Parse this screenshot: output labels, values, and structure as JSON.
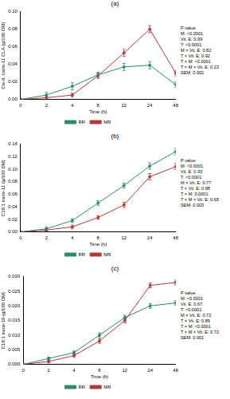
{
  "chart_data": [
    {
      "type": "line",
      "title": "(a)",
      "x_label": "Time (h)",
      "y_label": "Cis-9, trans-11 CLA (g/100 DM)",
      "categories": [
        "0",
        "2",
        "4",
        "8",
        "12",
        "24",
        "48"
      ],
      "series": [
        {
          "name": "RR",
          "color": "#2e8b6e",
          "marker": "circle",
          "values": [
            0.0,
            0.005,
            0.015,
            0.028,
            0.037,
            0.039,
            0.017
          ],
          "errors": [
            0.001,
            0.003,
            0.004,
            0.003,
            0.004,
            0.004,
            0.003
          ]
        },
        {
          "name": "MR",
          "color": "#b03a3a",
          "marker": "circle",
          "values": [
            0.0,
            0.002,
            0.005,
            0.027,
            0.053,
            0.08,
            0.03
          ],
          "errors": [
            0.001,
            0.002,
            0.002,
            0.003,
            0.004,
            0.004,
            0.003
          ]
        }
      ],
      "ylim": [
        0,
        0.1
      ],
      "yticks": [
        {
          "value": 0,
          "label": "0.00"
        },
        {
          "value": 0.02,
          "label": "0.02"
        },
        {
          "value": 0.04,
          "label": "0.04"
        },
        {
          "value": 0.06,
          "label": "0.06"
        },
        {
          "value": 0.08,
          "label": "0.08"
        },
        {
          "value": 0.1,
          "label": "0.10"
        }
      ],
      "grid": false,
      "legend": "bottom",
      "annotations": [
        "P value",
        "M: <0.0001",
        "Vit. E: 0.99",
        "T: <0.0001",
        "M × Vit. E: 0.82",
        "T × Vit. E: 0.92",
        "T × M: <0.0001",
        "T × M × Vit. E: 0.23",
        "SEM: 0.002"
      ]
    },
    {
      "type": "line",
      "title": "(b)",
      "x_label": "Time (h)",
      "y_label": "C18:1 trans-11 (g/100 DM)",
      "categories": [
        "0",
        "2",
        "4",
        "8",
        "12",
        "24",
        "48"
      ],
      "series": [
        {
          "name": "RR",
          "color": "#2e8b6e",
          "marker": "circle",
          "values": [
            0.0,
            0.005,
            0.018,
            0.046,
            0.074,
            0.105,
            0.128
          ],
          "errors": [
            0.001,
            0.003,
            0.003,
            0.004,
            0.004,
            0.005,
            0.005
          ]
        },
        {
          "name": "MR",
          "color": "#b03a3a",
          "marker": "circle",
          "values": [
            0.0,
            0.003,
            0.008,
            0.023,
            0.043,
            0.088,
            0.104
          ],
          "errors": [
            0.001,
            0.002,
            0.003,
            0.003,
            0.004,
            0.005,
            0.005
          ]
        }
      ],
      "ylim": [
        0,
        0.14
      ],
      "yticks": [
        {
          "value": 0,
          "label": "0.00"
        },
        {
          "value": 0.02,
          "label": "0.02"
        },
        {
          "value": 0.04,
          "label": "0.04"
        },
        {
          "value": 0.06,
          "label": "0.06"
        },
        {
          "value": 0.08,
          "label": "0.08"
        },
        {
          "value": 0.1,
          "label": "0.10"
        },
        {
          "value": 0.12,
          "label": "0.12"
        },
        {
          "value": 0.14,
          "label": "0.14"
        }
      ],
      "grid": false,
      "legend": "bottom",
      "annotations": [
        "P value",
        "M: <0.0001",
        "Vit. E: 0.30",
        "T: <0.0001",
        "M × Vit. E: 0.77",
        "T × Vit. E: 0.98",
        "T × M: 0.0001",
        "T × M × Vit. E: 0.65",
        "SEM: 0.003"
      ]
    },
    {
      "type": "line",
      "title": "(c)",
      "x_label": "Time (h)",
      "y_label": "C18:1 trans-10 (g/100 DM)",
      "categories": [
        "0",
        "2",
        "4",
        "8",
        "12",
        "24",
        "48"
      ],
      "series": [
        {
          "name": "RR",
          "color": "#2e8b6e",
          "marker": "circle",
          "values": [
            0.0,
            0.002,
            0.004,
            0.01,
            0.016,
            0.02,
            0.021
          ],
          "errors": [
            0.0003,
            0.0005,
            0.0006,
            0.0008,
            0.0008,
            0.0008,
            0.0008
          ]
        },
        {
          "name": "MR",
          "color": "#b03a3a",
          "marker": "circle",
          "values": [
            0.0,
            0.001,
            0.003,
            0.008,
            0.015,
            0.027,
            0.028
          ],
          "errors": [
            0.0003,
            0.0005,
            0.0006,
            0.0008,
            0.0008,
            0.0008,
            0.0008
          ]
        }
      ],
      "ylim": [
        0,
        0.03
      ],
      "yticks": [
        {
          "value": 0,
          "label": "0.000"
        },
        {
          "value": 0.005,
          "label": "0.005"
        },
        {
          "value": 0.01,
          "label": "0.010"
        },
        {
          "value": 0.015,
          "label": "0.015"
        },
        {
          "value": 0.02,
          "label": "0.020"
        },
        {
          "value": 0.025,
          "label": "0.025"
        },
        {
          "value": 0.03,
          "label": "0.030"
        }
      ],
      "grid": false,
      "legend": "bottom",
      "annotations": [
        "P value",
        "M: <0.0001",
        "Vit. E: 0.67",
        "T: <0.0001",
        "M × Vit. E: 0.72",
        "T × Vit. E: 0.89",
        "T × M: <0.0001",
        "T × M × Vit. E: 0.72",
        "SEM: 0.001"
      ]
    }
  ]
}
